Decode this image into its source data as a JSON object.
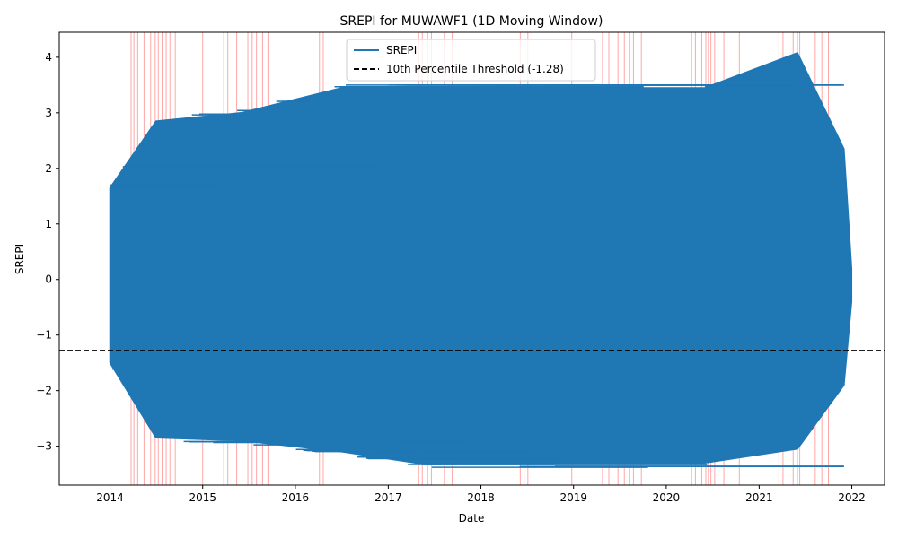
{
  "chart_data": {
    "type": "line",
    "title": "SREPI for MUWAWF1 (1D Moving Window)",
    "xlabel": "Date",
    "ylabel": "SREPI",
    "x_axis": "date",
    "xlim": [
      "2013-06-15",
      "2022-05-10"
    ],
    "ylim": [
      -3.7,
      4.45
    ],
    "x_ticks": [
      "2014",
      "2015",
      "2016",
      "2017",
      "2018",
      "2019",
      "2020",
      "2021",
      "2022"
    ],
    "y_ticks": [
      -3,
      -2,
      -1,
      0,
      1,
      2,
      3,
      4
    ],
    "grid": false,
    "legend_position": "top-center",
    "series": [
      {
        "name": "SREPI",
        "color": "#1f77b4",
        "style": "solid",
        "y_min": -3.33,
        "y_max": 4.08,
        "envelope": [
          {
            "date": "2014-01-01",
            "low": -1.5,
            "high": 1.65
          },
          {
            "date": "2014-07-01",
            "low": -2.85,
            "high": 2.85
          },
          {
            "date": "2015-06-01",
            "low": -2.9,
            "high": 3.0
          },
          {
            "date": "2016-07-01",
            "low": -3.1,
            "high": 3.45
          },
          {
            "date": "2017-06-01",
            "low": -3.33,
            "high": 3.45
          },
          {
            "date": "2019-06-01",
            "low": -3.3,
            "high": 3.45
          },
          {
            "date": "2020-06-01",
            "low": -3.3,
            "high": 3.45
          },
          {
            "date": "2021-06-01",
            "low": -3.05,
            "high": 4.08
          },
          {
            "date": "2021-12-01",
            "low": -1.9,
            "high": 2.35
          },
          {
            "date": "2021-12-31",
            "low": -0.4,
            "high": 0.2
          }
        ]
      },
      {
        "name": "10th Percentile Threshold (-1.28)",
        "color": "#000000",
        "style": "dashed",
        "value": -1.28
      }
    ],
    "event_lines": {
      "color": "#ff0000",
      "dates": [
        "2014-03-25",
        "2014-04-05",
        "2014-04-20",
        "2014-05-15",
        "2014-06-10",
        "2014-06-28",
        "2014-07-10",
        "2014-07-25",
        "2014-08-10",
        "2014-08-25",
        "2014-09-15",
        "2015-01-01",
        "2015-03-25",
        "2015-04-10",
        "2015-05-15",
        "2015-06-05",
        "2015-06-28",
        "2015-07-15",
        "2015-08-01",
        "2015-08-25",
        "2015-09-15",
        "2016-04-05",
        "2016-04-20",
        "2017-05-01",
        "2017-05-15",
        "2017-06-05",
        "2017-06-20",
        "2017-08-10",
        "2017-09-10",
        "2018-04-10",
        "2018-06-05",
        "2018-06-20",
        "2018-07-05",
        "2018-07-25",
        "2018-12-25",
        "2019-04-25",
        "2019-05-20",
        "2019-06-25",
        "2019-07-20",
        "2019-08-10",
        "2019-08-25",
        "2019-09-25",
        "2020-04-10",
        "2020-04-25",
        "2020-05-20",
        "2020-06-05",
        "2020-06-15",
        "2020-06-25",
        "2020-07-10",
        "2020-08-15",
        "2020-10-15",
        "2021-03-20",
        "2021-04-05",
        "2021-05-15",
        "2021-06-01",
        "2021-06-10",
        "2021-08-10",
        "2021-09-05",
        "2021-10-01"
      ]
    }
  }
}
